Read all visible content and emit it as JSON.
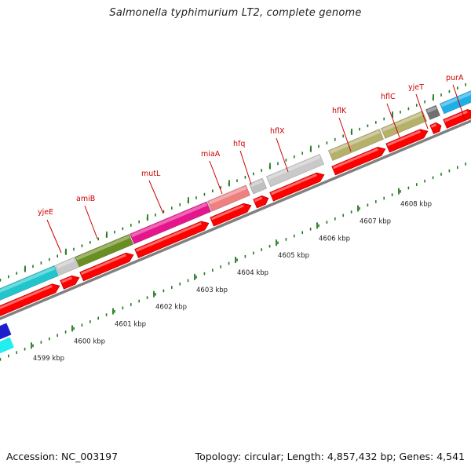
{
  "title": "Salmonella typhimurium LT2, complete genome",
  "footer": {
    "accession": "Accession: NC_003197",
    "summary": "Topology: circular; Length: 4,857,432 bp; Genes: 4,541"
  },
  "colors": {
    "cds_red": "#ff0000",
    "backbone": "#808080",
    "tick_green": "#1f7a1f",
    "label_red": "#cc0000"
  },
  "gene_labels": [
    "yjeE",
    "amiB",
    "mutL",
    "miaA",
    "hfq",
    "hflX",
    "hflK",
    "hflC",
    "yjeT",
    "purA"
  ],
  "kbp_labels": [
    "4599 kbp",
    "4600 kbp",
    "4601 kbp",
    "4602 kbp",
    "4603 kbp",
    "4604 kbp",
    "4605 kbp",
    "4606 kbp",
    "4607 kbp",
    "4608 kbp"
  ]
}
